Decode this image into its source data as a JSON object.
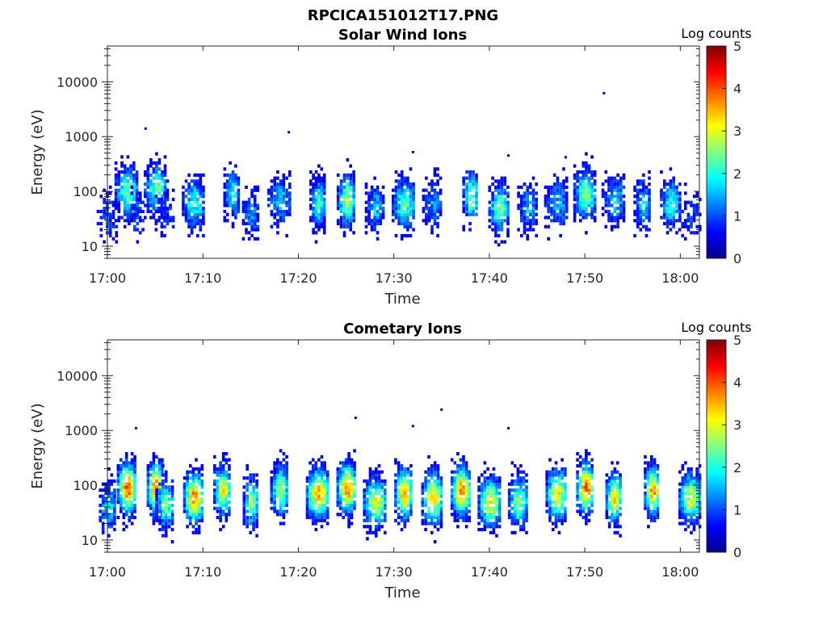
{
  "figure_title": "RPCICA151012T17.PNG",
  "chart_data": [
    {
      "type": "heatmap",
      "title": "Solar Wind Ions",
      "xlabel": "Time",
      "ylabel": "Energy (eV)",
      "x_range": [
        "17:00",
        "18:02"
      ],
      "x_ticks": [
        "17:00",
        "17:10",
        "17:20",
        "17:30",
        "17:40",
        "17:50",
        "18:00"
      ],
      "y_scale": "log",
      "y_range": [
        6,
        45000
      ],
      "y_ticks": [
        "10",
        "100",
        "1000",
        "10000"
      ],
      "colorbar_label": "Log counts",
      "colorbar_range": [
        0,
        5
      ],
      "colorbar_ticks": [
        "0",
        "1",
        "2",
        "3",
        "4",
        "5"
      ],
      "colormap": "jet",
      "bursts": [
        {
          "t": "17:00",
          "e": 35,
          "peak": 0.9
        },
        {
          "t": "17:02",
          "e": 100,
          "peak": 2.4
        },
        {
          "t": "17:03",
          "e": 40,
          "peak": 1.0
        },
        {
          "t": "17:05",
          "e": 110,
          "peak": 2.3
        },
        {
          "t": "17:06",
          "e": 40,
          "peak": 0.8
        },
        {
          "t": "17:09",
          "e": 60,
          "peak": 2.0
        },
        {
          "t": "17:13",
          "e": 90,
          "peak": 2.0
        },
        {
          "t": "17:15",
          "e": 40,
          "peak": 1.3
        },
        {
          "t": "17:18",
          "e": 70,
          "peak": 1.6
        },
        {
          "t": "17:22",
          "e": 60,
          "peak": 2.2
        },
        {
          "t": "17:25",
          "e": 70,
          "peak": 2.6
        },
        {
          "t": "17:28",
          "e": 50,
          "peak": 1.6
        },
        {
          "t": "17:31",
          "e": 60,
          "peak": 2.3
        },
        {
          "t": "17:34",
          "e": 60,
          "peak": 1.3
        },
        {
          "t": "17:38",
          "e": 80,
          "peak": 2.5
        },
        {
          "t": "17:41",
          "e": 50,
          "peak": 2.4
        },
        {
          "t": "17:44",
          "e": 50,
          "peak": 1.4
        },
        {
          "t": "17:47",
          "e": 60,
          "peak": 1.5
        },
        {
          "t": "17:50",
          "e": 90,
          "peak": 2.5
        },
        {
          "t": "17:53",
          "e": 70,
          "peak": 1.6
        },
        {
          "t": "17:56",
          "e": 60,
          "peak": 1.6
        },
        {
          "t": "17:59",
          "e": 60,
          "peak": 2.0
        },
        {
          "t": "18:01",
          "e": 35,
          "peak": 0.8
        }
      ],
      "isolated_points": [
        {
          "t": "17:04",
          "e": 1400,
          "v": 0.3
        },
        {
          "t": "17:19",
          "e": 1200,
          "v": 0.3
        },
        {
          "t": "17:32",
          "e": 520,
          "v": 0.3
        },
        {
          "t": "17:42",
          "e": 450,
          "v": 0.3
        },
        {
          "t": "17:48",
          "e": 420,
          "v": 0.3
        },
        {
          "t": "17:52",
          "e": 6200,
          "v": 0.3
        }
      ]
    },
    {
      "type": "heatmap",
      "title": "Cometary Ions",
      "xlabel": "Time",
      "ylabel": "Energy (eV)",
      "x_range": [
        "17:00",
        "18:02"
      ],
      "x_ticks": [
        "17:00",
        "17:10",
        "17:20",
        "17:30",
        "17:40",
        "17:50",
        "18:00"
      ],
      "y_scale": "log",
      "y_range": [
        6,
        45000
      ],
      "y_ticks": [
        "10",
        "100",
        "1000",
        "10000"
      ],
      "colorbar_label": "Log counts",
      "colorbar_range": [
        0,
        5
      ],
      "colorbar_ticks": [
        "0",
        "1",
        "2",
        "3",
        "4",
        "5"
      ],
      "colormap": "jet",
      "bursts": [
        {
          "t": "17:00",
          "e": 40,
          "peak": 1.8
        },
        {
          "t": "17:02",
          "e": 90,
          "peak": 4.0
        },
        {
          "t": "17:05",
          "e": 90,
          "peak": 4.0
        },
        {
          "t": "17:06",
          "e": 45,
          "peak": 2.4
        },
        {
          "t": "17:09",
          "e": 60,
          "peak": 3.8
        },
        {
          "t": "17:12",
          "e": 80,
          "peak": 3.2
        },
        {
          "t": "17:15",
          "e": 50,
          "peak": 2.6
        },
        {
          "t": "17:18",
          "e": 80,
          "peak": 2.8
        },
        {
          "t": "17:22",
          "e": 70,
          "peak": 3.6
        },
        {
          "t": "17:25",
          "e": 90,
          "peak": 3.8
        },
        {
          "t": "17:28",
          "e": 50,
          "peak": 3.0
        },
        {
          "t": "17:31",
          "e": 70,
          "peak": 3.6
        },
        {
          "t": "17:34",
          "e": 60,
          "peak": 3.4
        },
        {
          "t": "17:37",
          "e": 80,
          "peak": 3.8
        },
        {
          "t": "17:40",
          "e": 50,
          "peak": 3.2
        },
        {
          "t": "17:43",
          "e": 50,
          "peak": 2.6
        },
        {
          "t": "17:47",
          "e": 70,
          "peak": 3.2
        },
        {
          "t": "17:50",
          "e": 90,
          "peak": 4.0
        },
        {
          "t": "17:53",
          "e": 60,
          "peak": 3.4
        },
        {
          "t": "17:57",
          "e": 80,
          "peak": 3.6
        },
        {
          "t": "18:01",
          "e": 60,
          "peak": 3.0
        }
      ],
      "isolated_points": [
        {
          "t": "17:26",
          "e": 1700,
          "v": 0.3
        },
        {
          "t": "17:35",
          "e": 2400,
          "v": 0.3
        },
        {
          "t": "17:42",
          "e": 1100,
          "v": 0.3
        },
        {
          "t": "17:03",
          "e": 1100,
          "v": 0.4
        },
        {
          "t": "17:32",
          "e": 1200,
          "v": 0.5
        }
      ]
    }
  ]
}
